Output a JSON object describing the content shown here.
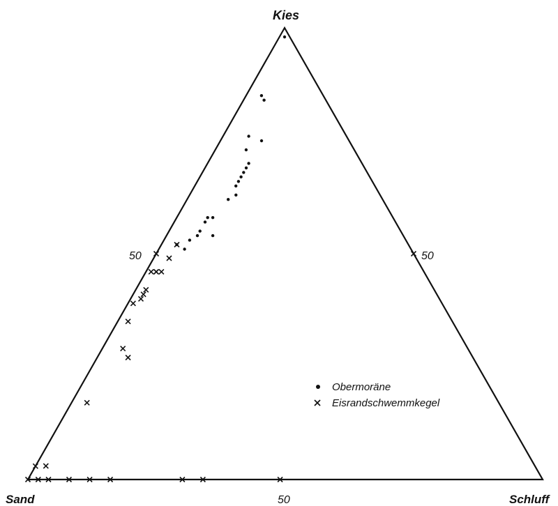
{
  "chart_data": {
    "type": "scatter",
    "subtype": "ternary",
    "axes": {
      "top": "Kies",
      "left": "Sand",
      "right": "Schluff"
    },
    "ticks": {
      "left_edge": "50",
      "right_edge": "50",
      "bottom_edge": "50"
    },
    "series": [
      {
        "name": "Obermoräne",
        "marker": "dot",
        "color": "#111111",
        "points": [
          {
            "sand": 1,
            "kies": 98,
            "schluff": 1
          },
          {
            "sand": 12,
            "kies": 85,
            "schluff": 3
          },
          {
            "sand": 12,
            "kies": 84,
            "schluff": 4
          },
          {
            "sand": 19,
            "kies": 76,
            "schluff": 5
          },
          {
            "sand": 21,
            "kies": 73,
            "schluff": 6
          },
          {
            "sand": 17,
            "kies": 75,
            "schluff": 8
          },
          {
            "sand": 22,
            "kies": 70,
            "schluff": 8
          },
          {
            "sand": 23,
            "kies": 69,
            "schluff": 8
          },
          {
            "sand": 24,
            "kies": 68,
            "schluff": 8
          },
          {
            "sand": 25,
            "kies": 67,
            "schluff": 8
          },
          {
            "sand": 26,
            "kies": 66,
            "schluff": 8
          },
          {
            "sand": 27,
            "kies": 65,
            "schluff": 8
          },
          {
            "sand": 28,
            "kies": 63,
            "schluff": 9
          },
          {
            "sand": 30,
            "kies": 62,
            "schluff": 8
          },
          {
            "sand": 36,
            "kies": 58,
            "schluff": 6
          },
          {
            "sand": 37,
            "kies": 57,
            "schluff": 6
          },
          {
            "sand": 35,
            "kies": 58,
            "schluff": 7
          },
          {
            "sand": 42,
            "kies": 53,
            "schluff": 5
          },
          {
            "sand": 40,
            "kies": 54,
            "schluff": 6
          },
          {
            "sand": 39,
            "kies": 55,
            "schluff": 6
          },
          {
            "sand": 37,
            "kies": 54,
            "schluff": 9
          },
          {
            "sand": 45,
            "kies": 52,
            "schluff": 3
          },
          {
            "sand": 44,
            "kies": 51,
            "schluff": 5
          }
        ]
      },
      {
        "name": "Eisrandschwemmkegel",
        "marker": "x",
        "color": "#111111",
        "points": [
          {
            "sand": 45,
            "kies": 52,
            "schluff": 3
          },
          {
            "sand": 48,
            "kies": 49,
            "schluff": 3
          },
          {
            "sand": 53,
            "kies": 46,
            "schluff": 1
          },
          {
            "sand": 51,
            "kies": 46,
            "schluff": 3
          },
          {
            "sand": 52,
            "kies": 46,
            "schluff": 2
          },
          {
            "sand": 52,
            "kies": 46,
            "schluff": 2
          },
          {
            "sand": 56,
            "kies": 42,
            "schluff": 2
          },
          {
            "sand": 57,
            "kies": 41,
            "schluff": 2
          },
          {
            "sand": 58,
            "kies": 40,
            "schluff": 2
          },
          {
            "sand": 60,
            "kies": 39,
            "schluff": 1
          },
          {
            "sand": 63,
            "kies": 35,
            "schluff": 2
          },
          {
            "sand": 67,
            "kies": 29,
            "schluff": 4
          },
          {
            "sand": 67,
            "kies": 27,
            "schluff": 6
          },
          {
            "sand": 80,
            "kies": 17,
            "schluff": 3
          },
          {
            "sand": 98,
            "kies": 3,
            "schluff": 0
          },
          {
            "sand": 95,
            "kies": 3,
            "schluff": 2
          },
          {
            "sand": 100,
            "kies": 0,
            "schluff": 0
          },
          {
            "sand": 98,
            "kies": 0,
            "schluff": 2
          },
          {
            "sand": 96,
            "kies": 0,
            "schluff": 4
          },
          {
            "sand": 92,
            "kies": 0,
            "schluff": 8
          },
          {
            "sand": 88,
            "kies": 0,
            "schluff": 12
          },
          {
            "sand": 84,
            "kies": 0,
            "schluff": 16
          },
          {
            "sand": 70,
            "kies": 0,
            "schluff": 30
          },
          {
            "sand": 66,
            "kies": 0,
            "schluff": 34
          },
          {
            "sand": 51,
            "kies": 0,
            "schluff": 49
          },
          {
            "sand": 50,
            "kies": 50,
            "schluff": 0
          },
          {
            "sand": 0,
            "kies": 50,
            "schluff": 50
          }
        ]
      }
    ],
    "legend": {
      "placement": "lower-right inside triangle",
      "items": [
        "Obermoräne",
        "Eisrandschwemmkegel"
      ]
    }
  }
}
